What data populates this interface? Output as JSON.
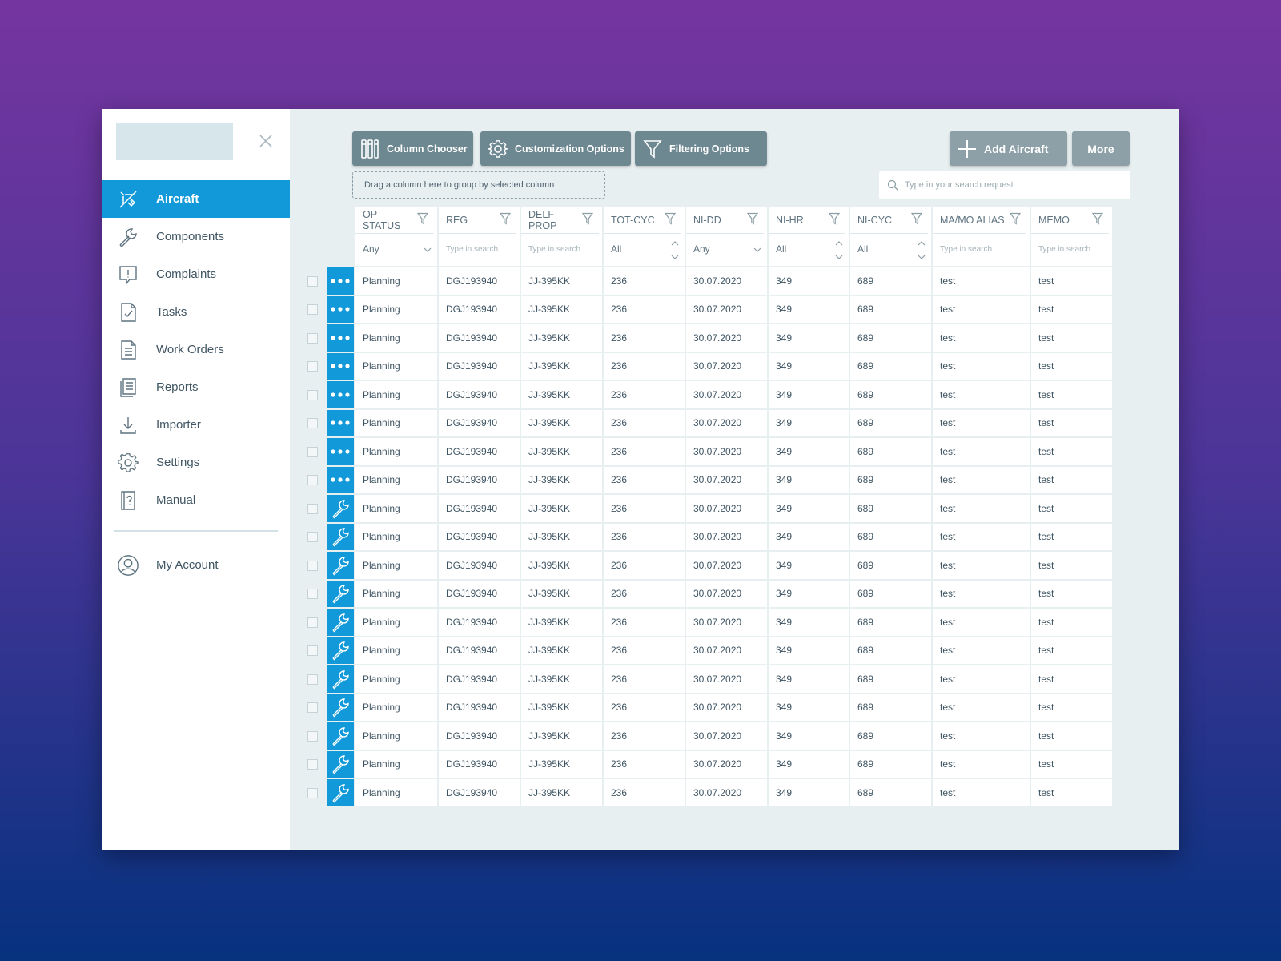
{
  "sidebar": {
    "items": [
      {
        "label": "Aircraft",
        "icon": "airplane-icon",
        "active": true
      },
      {
        "label": "Components",
        "icon": "wrench-icon"
      },
      {
        "label": "Complaints",
        "icon": "exclamation-bubble-icon"
      },
      {
        "label": "Tasks",
        "icon": "checked-document-icon"
      },
      {
        "label": "Work Orders",
        "icon": "document-icon"
      },
      {
        "label": "Reports",
        "icon": "reports-icon"
      },
      {
        "label": "Importer",
        "icon": "download-icon"
      },
      {
        "label": "Settings",
        "icon": "gear-icon"
      },
      {
        "label": "Manual",
        "icon": "manual-icon"
      }
    ],
    "account": {
      "label": "My Account",
      "icon": "user-circle-icon"
    }
  },
  "toolbar": {
    "column_chooser": "Column Chooser",
    "customization": "Customization Options",
    "filtering": "Filtering Options",
    "add_aircraft": "Add Aircraft",
    "more": "More"
  },
  "group_hint": "Drag a column here to group by selected column",
  "search": {
    "placeholder": "Type in your search request"
  },
  "table": {
    "columns": [
      {
        "key": "op_status",
        "label": "OP STATUS",
        "filter_type": "select",
        "filter_value": "Any"
      },
      {
        "key": "reg",
        "label": "REG",
        "filter_type": "text",
        "placeholder": "Type in search"
      },
      {
        "key": "delf_prop",
        "label": "DELF PROP",
        "filter_type": "text",
        "placeholder": "Type in search"
      },
      {
        "key": "tot_cyc",
        "label": "TOT-CYC",
        "filter_type": "spin",
        "filter_value": "All"
      },
      {
        "key": "ni_dd",
        "label": "NI-DD",
        "filter_type": "select",
        "filter_value": "Any"
      },
      {
        "key": "ni_hr",
        "label": "NI-HR",
        "filter_type": "spin",
        "filter_value": "All"
      },
      {
        "key": "ni_cyc",
        "label": "NI-CYC",
        "filter_type": "spin",
        "filter_value": "All"
      },
      {
        "key": "mamo_alias",
        "label": "MA/MO ALIAS",
        "filter_type": "text",
        "placeholder": "Type in search"
      },
      {
        "key": "memo",
        "label": "MEMO",
        "filter_type": "text",
        "placeholder": "Type in search"
      }
    ],
    "action_colors": {
      "accent": "#1199d9"
    },
    "rows": [
      {
        "action": "more-dots-icon",
        "op_status": "Planning",
        "reg": "DGJ193940",
        "delf_prop": "JJ-395KK",
        "tot_cyc": "236",
        "ni_dd": "30.07.2020",
        "ni_hr": "349",
        "ni_cyc": "689",
        "mamo_alias": "test",
        "memo": "test"
      },
      {
        "action": "more-dots-icon",
        "op_status": "Planning",
        "reg": "DGJ193940",
        "delf_prop": "JJ-395KK",
        "tot_cyc": "236",
        "ni_dd": "30.07.2020",
        "ni_hr": "349",
        "ni_cyc": "689",
        "mamo_alias": "test",
        "memo": "test"
      },
      {
        "action": "more-dots-icon",
        "op_status": "Planning",
        "reg": "DGJ193940",
        "delf_prop": "JJ-395KK",
        "tot_cyc": "236",
        "ni_dd": "30.07.2020",
        "ni_hr": "349",
        "ni_cyc": "689",
        "mamo_alias": "test",
        "memo": "test"
      },
      {
        "action": "more-dots-icon",
        "op_status": "Planning",
        "reg": "DGJ193940",
        "delf_prop": "JJ-395KK",
        "tot_cyc": "236",
        "ni_dd": "30.07.2020",
        "ni_hr": "349",
        "ni_cyc": "689",
        "mamo_alias": "test",
        "memo": "test"
      },
      {
        "action": "more-dots-icon",
        "op_status": "Planning",
        "reg": "DGJ193940",
        "delf_prop": "JJ-395KK",
        "tot_cyc": "236",
        "ni_dd": "30.07.2020",
        "ni_hr": "349",
        "ni_cyc": "689",
        "mamo_alias": "test",
        "memo": "test"
      },
      {
        "action": "more-dots-icon",
        "op_status": "Planning",
        "reg": "DGJ193940",
        "delf_prop": "JJ-395KK",
        "tot_cyc": "236",
        "ni_dd": "30.07.2020",
        "ni_hr": "349",
        "ni_cyc": "689",
        "mamo_alias": "test",
        "memo": "test"
      },
      {
        "action": "more-dots-icon",
        "op_status": "Planning",
        "reg": "DGJ193940",
        "delf_prop": "JJ-395KK",
        "tot_cyc": "236",
        "ni_dd": "30.07.2020",
        "ni_hr": "349",
        "ni_cyc": "689",
        "mamo_alias": "test",
        "memo": "test"
      },
      {
        "action": "more-dots-icon",
        "op_status": "Planning",
        "reg": "DGJ193940",
        "delf_prop": "JJ-395KK",
        "tot_cyc": "236",
        "ni_dd": "30.07.2020",
        "ni_hr": "349",
        "ni_cyc": "689",
        "mamo_alias": "test",
        "memo": "test"
      },
      {
        "action": "wrench-icon",
        "op_status": "Planning",
        "reg": "DGJ193940",
        "delf_prop": "JJ-395KK",
        "tot_cyc": "236",
        "ni_dd": "30.07.2020",
        "ni_hr": "349",
        "ni_cyc": "689",
        "mamo_alias": "test",
        "memo": "test"
      },
      {
        "action": "wrench-icon",
        "op_status": "Planning",
        "reg": "DGJ193940",
        "delf_prop": "JJ-395KK",
        "tot_cyc": "236",
        "ni_dd": "30.07.2020",
        "ni_hr": "349",
        "ni_cyc": "689",
        "mamo_alias": "test",
        "memo": "test"
      },
      {
        "action": "wrench-icon",
        "op_status": "Planning",
        "reg": "DGJ193940",
        "delf_prop": "JJ-395KK",
        "tot_cyc": "236",
        "ni_dd": "30.07.2020",
        "ni_hr": "349",
        "ni_cyc": "689",
        "mamo_alias": "test",
        "memo": "test"
      },
      {
        "action": "wrench-icon",
        "op_status": "Planning",
        "reg": "DGJ193940",
        "delf_prop": "JJ-395KK",
        "tot_cyc": "236",
        "ni_dd": "30.07.2020",
        "ni_hr": "349",
        "ni_cyc": "689",
        "mamo_alias": "test",
        "memo": "test"
      },
      {
        "action": "wrench-icon",
        "op_status": "Planning",
        "reg": "DGJ193940",
        "delf_prop": "JJ-395KK",
        "tot_cyc": "236",
        "ni_dd": "30.07.2020",
        "ni_hr": "349",
        "ni_cyc": "689",
        "mamo_alias": "test",
        "memo": "test"
      },
      {
        "action": "wrench-icon",
        "op_status": "Planning",
        "reg": "DGJ193940",
        "delf_prop": "JJ-395KK",
        "tot_cyc": "236",
        "ni_dd": "30.07.2020",
        "ni_hr": "349",
        "ni_cyc": "689",
        "mamo_alias": "test",
        "memo": "test"
      },
      {
        "action": "wrench-icon",
        "op_status": "Planning",
        "reg": "DGJ193940",
        "delf_prop": "JJ-395KK",
        "tot_cyc": "236",
        "ni_dd": "30.07.2020",
        "ni_hr": "349",
        "ni_cyc": "689",
        "mamo_alias": "test",
        "memo": "test"
      },
      {
        "action": "wrench-icon",
        "op_status": "Planning",
        "reg": "DGJ193940",
        "delf_prop": "JJ-395KK",
        "tot_cyc": "236",
        "ni_dd": "30.07.2020",
        "ni_hr": "349",
        "ni_cyc": "689",
        "mamo_alias": "test",
        "memo": "test"
      },
      {
        "action": "wrench-icon",
        "op_status": "Planning",
        "reg": "DGJ193940",
        "delf_prop": "JJ-395KK",
        "tot_cyc": "236",
        "ni_dd": "30.07.2020",
        "ni_hr": "349",
        "ni_cyc": "689",
        "mamo_alias": "test",
        "memo": "test"
      },
      {
        "action": "wrench-icon",
        "op_status": "Planning",
        "reg": "DGJ193940",
        "delf_prop": "JJ-395KK",
        "tot_cyc": "236",
        "ni_dd": "30.07.2020",
        "ni_hr": "349",
        "ni_cyc": "689",
        "mamo_alias": "test",
        "memo": "test"
      },
      {
        "action": "wrench-icon",
        "op_status": "Planning",
        "reg": "DGJ193940",
        "delf_prop": "JJ-395KK",
        "tot_cyc": "236",
        "ni_dd": "30.07.2020",
        "ni_hr": "349",
        "ni_cyc": "689",
        "mamo_alias": "test",
        "memo": "test"
      }
    ]
  }
}
